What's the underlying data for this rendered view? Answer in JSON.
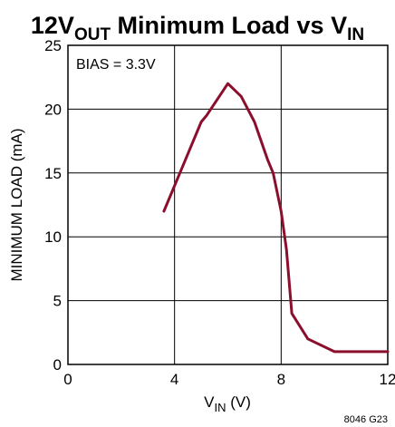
{
  "chart_data": {
    "type": "line",
    "title": {
      "main": "12V",
      "sub": "OUT",
      "rest": " Minimum Load vs V",
      "sub2": "IN"
    },
    "xlabel": {
      "main": "V",
      "sub": "IN",
      "rest": " (V)"
    },
    "ylabel": "MINIMUM LOAD (mA)",
    "xlim": [
      0,
      12
    ],
    "ylim": [
      0,
      25
    ],
    "xticks": [
      0,
      4,
      8,
      12
    ],
    "yticks": [
      0,
      5,
      10,
      15,
      20,
      25
    ],
    "grid": true,
    "annotation": "BIAS = 3.3V",
    "figure_code": "8046 G23",
    "line_color": "#8b0f2c",
    "series": [
      {
        "x": [
          3.6,
          4.3,
          5.0,
          5.2,
          6.0,
          6.5,
          7.0,
          7.5,
          7.7,
          8.0,
          8.2,
          8.4,
          9.0,
          10.0,
          11.0,
          12.0
        ],
        "y": [
          12,
          15.5,
          19,
          19.5,
          22,
          21,
          19,
          16,
          15,
          12,
          9,
          4,
          2,
          1,
          1,
          1
        ]
      }
    ]
  }
}
